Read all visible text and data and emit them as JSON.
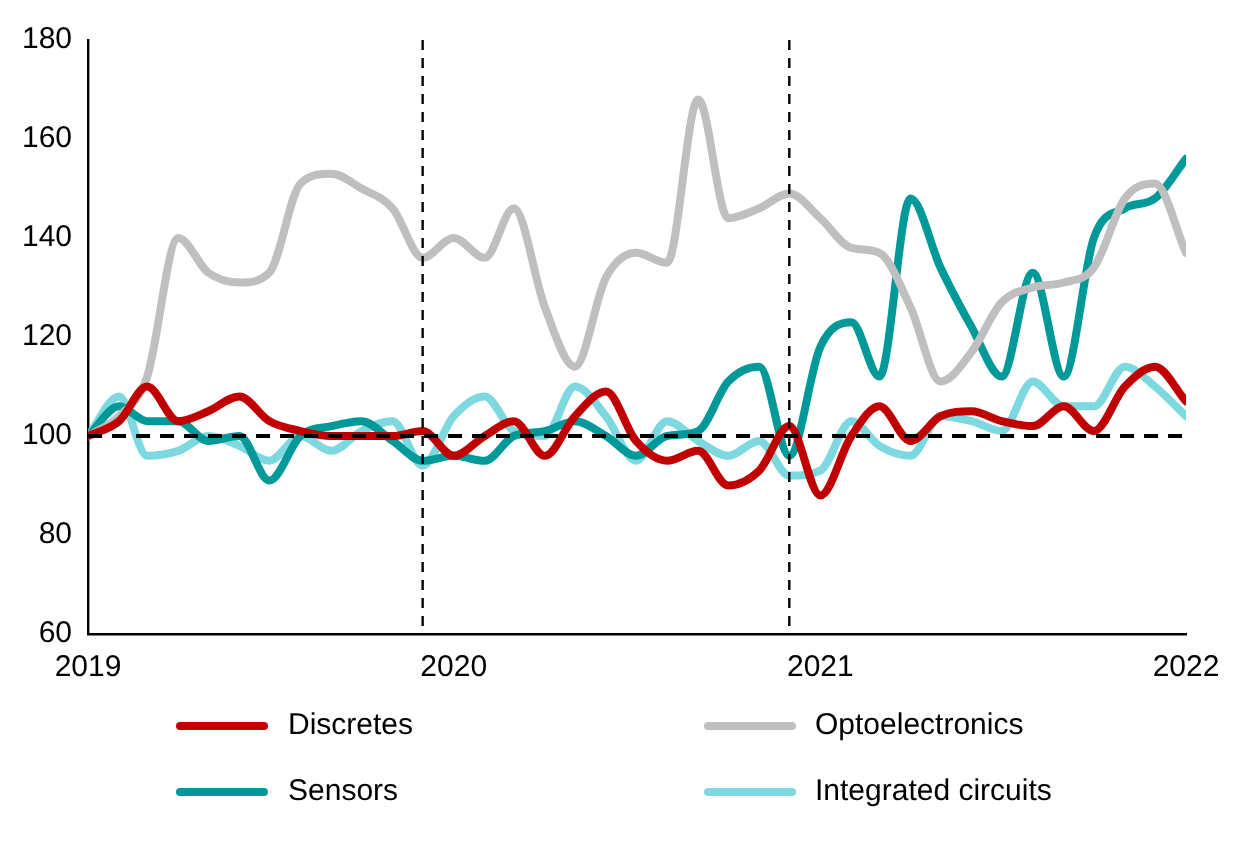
{
  "chart_data": {
    "type": "line",
    "x": [
      "2019-01",
      "2019-02",
      "2019-03",
      "2019-04",
      "2019-05",
      "2019-06",
      "2019-07",
      "2019-08",
      "2019-09",
      "2019-10",
      "2019-11",
      "2019-12",
      "2020-01",
      "2020-02",
      "2020-03",
      "2020-04",
      "2020-05",
      "2020-06",
      "2020-07",
      "2020-08",
      "2020-09",
      "2020-10",
      "2020-11",
      "2020-12",
      "2021-01",
      "2021-02",
      "2021-03",
      "2021-04",
      "2021-05",
      "2021-06",
      "2021-07",
      "2021-08",
      "2021-09",
      "2021-10",
      "2021-11",
      "2021-12",
      "2022-01"
    ],
    "series": [
      {
        "name": "Discretes",
        "color": "#c00000",
        "values": [
          100,
          103,
          110,
          103,
          105,
          108,
          103,
          101,
          100,
          100,
          100,
          101,
          96,
          100,
          103,
          96,
          104,
          109,
          99,
          95,
          97,
          90,
          93,
          102,
          88,
          100,
          106,
          99,
          104,
          105,
          103,
          102,
          106,
          101,
          110,
          114,
          107
        ]
      },
      {
        "name": "Optoelectronics",
        "color": "#bfbfbf",
        "values": [
          100,
          104,
          112,
          140,
          133,
          131,
          133,
          151,
          153,
          150,
          146,
          136,
          140,
          136,
          146,
          126,
          114,
          132,
          137,
          135,
          168,
          144,
          146,
          149,
          144,
          138,
          137,
          126,
          111,
          117,
          127,
          130,
          131,
          134,
          148,
          151,
          137
        ]
      },
      {
        "name": "Sensors",
        "color": "#009999",
        "values": [
          100,
          106,
          103,
          103,
          99,
          100,
          91,
          100,
          102,
          103,
          99,
          95,
          96,
          95,
          100,
          101,
          103,
          100,
          96,
          100,
          101,
          111,
          114,
          96,
          118,
          123,
          112,
          148,
          134,
          122,
          112,
          133,
          112,
          140,
          146,
          148,
          156
        ]
      },
      {
        "name": "Integrated circuits",
        "color": "#7dd8e0",
        "values": [
          100,
          108,
          96,
          97,
          100,
          98,
          95,
          100,
          97,
          101,
          103,
          94,
          104,
          108,
          101,
          100,
          110,
          104,
          95,
          103,
          99,
          96,
          99,
          92,
          93,
          103,
          98,
          96,
          104,
          103,
          101,
          111,
          106,
          106,
          114,
          110,
          104
        ]
      }
    ],
    "xlim": [
      "2019",
      "2022"
    ],
    "xticks": [
      "2019",
      "2020",
      "2021",
      "2022"
    ],
    "ylim": [
      60,
      180
    ],
    "yticks": [
      60,
      80,
      100,
      120,
      140,
      160,
      180
    ],
    "ref_lines": [
      {
        "axis": "y",
        "value": 100,
        "color": "#000000",
        "line_style": "dashed"
      },
      {
        "axis": "x",
        "value": "2019-12",
        "color": "#000000",
        "line_style": "dashed"
      },
      {
        "axis": "x",
        "value": "2020-12",
        "color": "#000000",
        "line_style": "dashed"
      }
    ],
    "grid": false,
    "legend": "bottom",
    "marker": "none",
    "line_style": "solid"
  }
}
